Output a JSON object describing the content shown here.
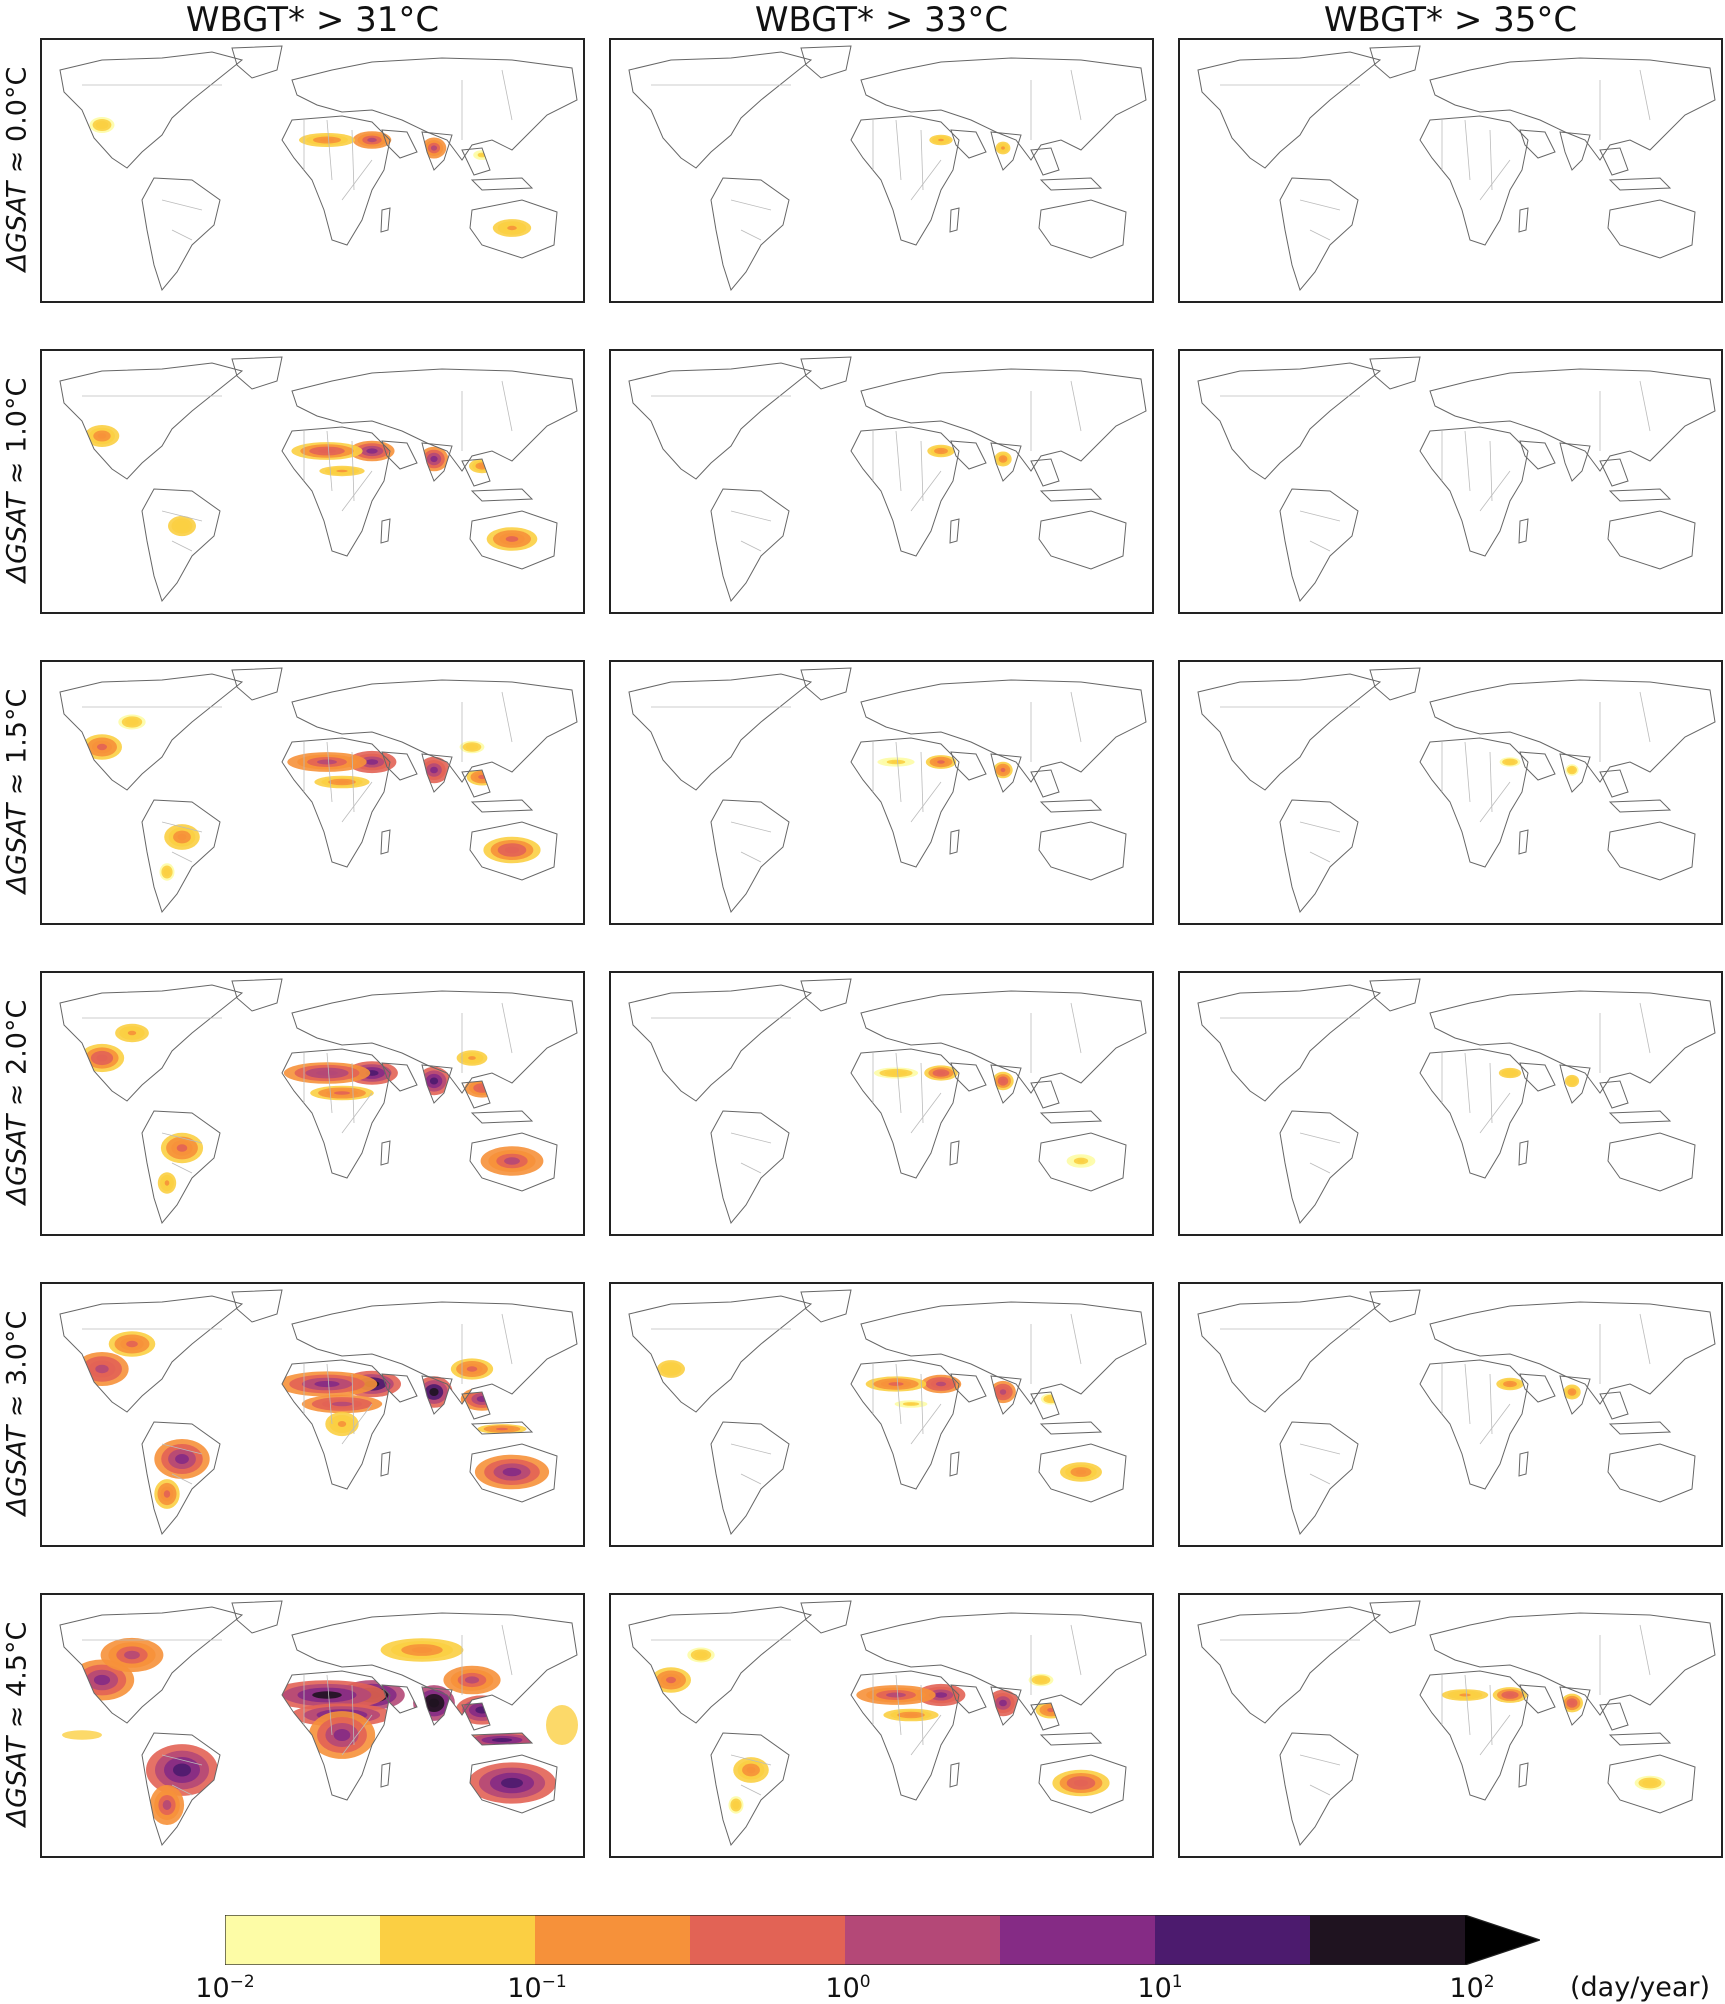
{
  "columns": [
    {
      "id": "c31",
      "title": "WBGT* > 31°C"
    },
    {
      "id": "c33",
      "title": "WBGT* > 33°C"
    },
    {
      "id": "c35",
      "title": "WBGT* > 35°C"
    }
  ],
  "rows": [
    {
      "id": "r00",
      "prefix": "ΔGSAT",
      "value": "≈ 0.0°C"
    },
    {
      "id": "r10",
      "prefix": "ΔGSAT",
      "value": "≈ 1.0°C"
    },
    {
      "id": "r15",
      "prefix": "ΔGSAT",
      "value": "≈ 1.5°C"
    },
    {
      "id": "r20",
      "prefix": "ΔGSAT",
      "value": "≈ 2.0°C"
    },
    {
      "id": "r30",
      "prefix": "ΔGSAT",
      "value": "≈ 3.0°C"
    },
    {
      "id": "r45",
      "prefix": "ΔGSAT",
      "value": "≈ 4.5°C"
    }
  ],
  "intensity_grid": [
    [
      0.42,
      0.12,
      0.02
    ],
    [
      0.55,
      0.2,
      0.05
    ],
    [
      0.62,
      0.26,
      0.07
    ],
    [
      0.68,
      0.32,
      0.1
    ],
    [
      0.8,
      0.46,
      0.2
    ],
    [
      0.95,
      0.62,
      0.34
    ]
  ],
  "colorbar": {
    "bins": [
      "#fdfca6",
      "#fbcf43",
      "#f6913a",
      "#e26355",
      "#b44877",
      "#852b85",
      "#4c1b6e",
      "#1f1320"
    ],
    "extend_color": "#000000",
    "ticks": [
      {
        "base": "10",
        "exp": "−2"
      },
      {
        "base": "10",
        "exp": "−1"
      },
      {
        "base": "10",
        "exp": "0"
      },
      {
        "base": "10",
        "exp": "1"
      },
      {
        "base": "10",
        "exp": "2"
      }
    ],
    "unit": "(day/year)"
  }
}
